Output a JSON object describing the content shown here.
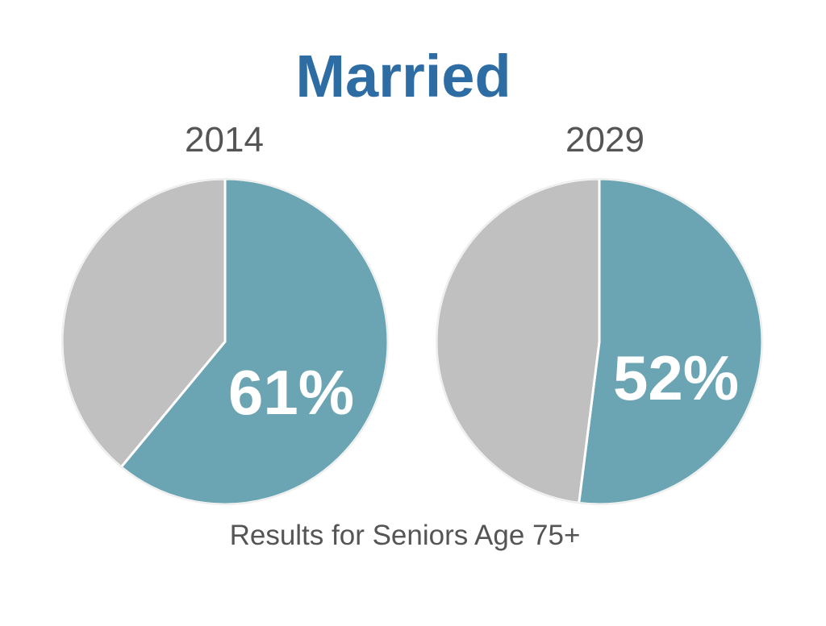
{
  "colors": {
    "title": "#2e6da4",
    "married": "#6ba5b3",
    "other": "#c0c0c0",
    "text": "#555555"
  },
  "chart_data": {
    "type": "pie",
    "title": "Married",
    "footnote": "Results for Seniors Age 75+",
    "charts": [
      {
        "title": "2014",
        "slices": [
          {
            "value": 61,
            "label": "61%",
            "color": "#6ba5b3"
          },
          {
            "value": 39,
            "label": "",
            "color": "#c0c0c0"
          }
        ]
      },
      {
        "title": "2029",
        "slices": [
          {
            "value": 52,
            "label": "52%",
            "color": "#6ba5b3"
          },
          {
            "value": 48,
            "label": "",
            "color": "#c0c0c0"
          }
        ]
      }
    ]
  }
}
